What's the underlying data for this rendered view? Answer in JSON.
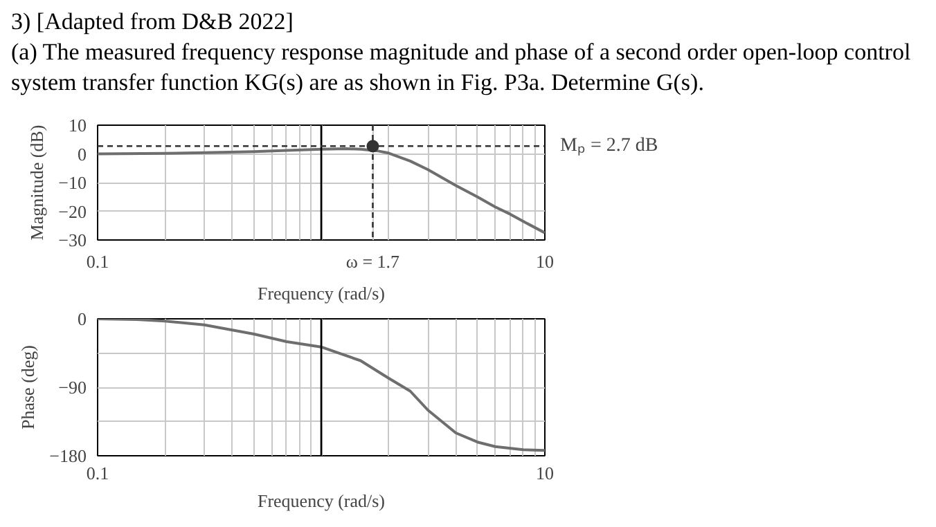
{
  "chart_data": [
    {
      "type": "line",
      "title": "3) [Adapted from D&B 2022]",
      "subtitle": "(a) The measured frequency response magnitude and phase of a second order open-loop control system transfer function KG(s) are as shown in Fig. P3a.  Determine G(s).",
      "xlabel": "Frequency (rad/s)",
      "ylabel": "Magnitude (dB)",
      "log": "x",
      "grid": true,
      "xlim": [
        0.1,
        10
      ],
      "ylim": [
        -30,
        10
      ],
      "xticks": [
        0.1,
        {
          "value": 0.2,
          "label": null
        },
        {
          "value": 0.3,
          "label": null
        },
        {
          "value": 0.4,
          "label": null
        },
        {
          "value": 0.5,
          "label": null
        },
        {
          "value": 0.6,
          "label": null
        },
        {
          "value": 0.7,
          "label": null
        },
        {
          "value": 0.8,
          "label": null
        },
        {
          "value": 0.9,
          "label": null
        },
        {
          "value": 1,
          "label": null
        },
        {
          "value": 1.7,
          "label": "ω = 1.7"
        },
        {
          "value": 2,
          "label": null
        },
        {
          "value": 3,
          "label": null
        },
        {
          "value": 4,
          "label": null
        },
        {
          "value": 5,
          "label": null
        },
        {
          "value": 6,
          "label": null
        },
        {
          "value": 7,
          "label": null
        },
        {
          "value": 8,
          "label": null
        },
        {
          "value": 9,
          "label": null
        },
        10
      ],
      "yticks": [
        -30,
        -20,
        -10,
        0,
        10
      ],
      "series": [
        {
          "color": "#6e6e6e",
          "x": [
            0.1,
            0.2,
            0.3,
            0.5,
            0.7,
            1,
            1.3,
            1.5,
            1.8,
            2,
            2.5,
            3,
            4,
            5,
            6,
            7,
            8,
            10
          ],
          "values": [
            0,
            0.2,
            0.4,
            0.8,
            1.2,
            1.6,
            1.8,
            1.6,
            1.0,
            0.3,
            -2.5,
            -5.5,
            -11,
            -15,
            -18.5,
            -21,
            -23.5,
            -27.5
          ]
        },
        {
          "type": "scatter",
          "color": "#333333",
          "marker": "circle",
          "x": [
            1.7
          ],
          "values": [
            2.7
          ]
        }
      ],
      "ref_lines": [
        {
          "axis": "x",
          "value": 1,
          "color": "#000000",
          "line_style": "solid"
        },
        {
          "axis": "x",
          "value": 1.7,
          "color": "#333333",
          "line_style": "dashed"
        },
        {
          "axis": "y",
          "value": 2.7,
          "label": "Mₚ = 2.7 dB",
          "color": "#333333",
          "line_style": "dashed"
        }
      ]
    },
    {
      "type": "line",
      "xlabel": "Frequency (rad/s)",
      "ylabel": "Phase (deg)",
      "log": "x",
      "grid": true,
      "xlim": [
        0.1,
        10
      ],
      "ylim": [
        -180,
        0
      ],
      "xticks": [
        0.1,
        {
          "value": 0.2,
          "label": null
        },
        {
          "value": 0.3,
          "label": null
        },
        {
          "value": 0.4,
          "label": null
        },
        {
          "value": 0.5,
          "label": null
        },
        {
          "value": 0.6,
          "label": null
        },
        {
          "value": 0.7,
          "label": null
        },
        {
          "value": 0.8,
          "label": null
        },
        {
          "value": 0.9,
          "label": null
        },
        {
          "value": 1,
          "label": null
        },
        {
          "value": 2,
          "label": null
        },
        {
          "value": 3,
          "label": null
        },
        {
          "value": 4,
          "label": null
        },
        {
          "value": 5,
          "label": null
        },
        {
          "value": 6,
          "label": null
        },
        {
          "value": 7,
          "label": null
        },
        {
          "value": 8,
          "label": null
        },
        {
          "value": 9,
          "label": null
        },
        10
      ],
      "yticks": [
        -180,
        {
          "value": -135,
          "label": null
        },
        -90,
        {
          "value": -45,
          "label": null
        },
        0
      ],
      "series": [
        {
          "color": "#6e6e6e",
          "x": [
            0.1,
            0.15,
            0.2,
            0.3,
            0.5,
            0.7,
            1,
            1.5,
            2,
            2.5,
            3,
            4,
            5,
            6,
            8,
            10
          ],
          "values": [
            0,
            -1,
            -3,
            -8,
            -20,
            -30,
            -37,
            -55,
            -78,
            -95,
            -120,
            -150,
            -162,
            -168,
            -172,
            -173
          ]
        }
      ],
      "ref_lines": [
        {
          "axis": "x",
          "value": 1,
          "color": "#000000",
          "line_style": "solid"
        }
      ]
    }
  ]
}
